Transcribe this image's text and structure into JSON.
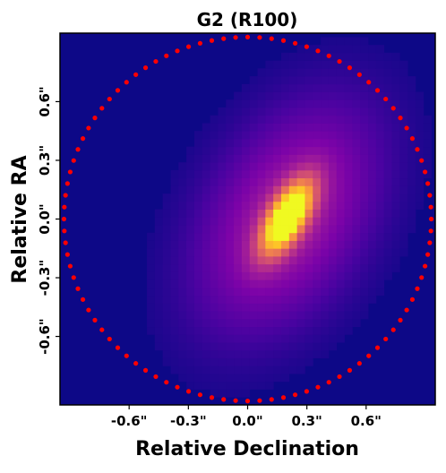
{
  "chart_data": {
    "type": "heatmap",
    "title": "G2 (R100)",
    "xlabel": "Relative Declination",
    "ylabel": "Relative RA",
    "xlim": [
      -0.95,
      0.95
    ],
    "ylim": [
      -0.95,
      0.95
    ],
    "x_ticks": [
      {
        "value": -0.6,
        "label": "-0.6\""
      },
      {
        "value": -0.3,
        "label": "-0.3\""
      },
      {
        "value": 0.0,
        "label": "0.0\""
      },
      {
        "value": 0.3,
        "label": "0.3\""
      },
      {
        "value": 0.6,
        "label": "0.6\""
      }
    ],
    "y_ticks": [
      {
        "value": 0.6,
        "label": "0.6\""
      },
      {
        "value": 0.3,
        "label": "0.3\""
      },
      {
        "value": 0.0,
        "label": "0.0\""
      },
      {
        "value": -0.3,
        "label": "-0.3\""
      },
      {
        "value": -0.6,
        "label": "-0.6\""
      }
    ],
    "grid": false,
    "colormap": "plasma",
    "background_color": "#0d0887",
    "pixel_size": 0.04,
    "source": {
      "center": [
        0.2,
        0.01
      ],
      "major_sigma": 0.14,
      "minor_sigma": 0.06,
      "position_angle_deg": 60,
      "halo_amplitude": 0.38,
      "halo_major_sigma": 0.44,
      "halo_minor_sigma": 0.27
    },
    "aperture": {
      "color": "#ff0000",
      "radius": 0.93,
      "center": [
        0.0,
        0.0
      ],
      "n_points": 96
    }
  }
}
